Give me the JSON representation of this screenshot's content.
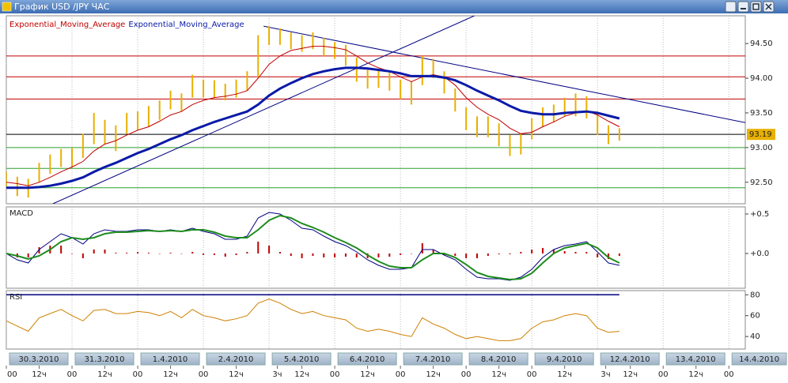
{
  "window": {
    "title": "График USD /JPY  ЧАС"
  },
  "chart_data": [
    {
      "type": "ohlc",
      "x": [
        0,
        4,
        8,
        12,
        16,
        20,
        24,
        28,
        32,
        36,
        40,
        44,
        48,
        52,
        56,
        60,
        64,
        68,
        72,
        76,
        80,
        84,
        88,
        92,
        96,
        100,
        104,
        108,
        112,
        116,
        120,
        124,
        128,
        132,
        136,
        140,
        144,
        148,
        152,
        156,
        160,
        164,
        168,
        172,
        176,
        180,
        184,
        188,
        192,
        196,
        200,
        204,
        208,
        212,
        216,
        220,
        224
      ],
      "xlim": [
        0,
        270
      ],
      "xticks": [
        {
          "value": 0,
          "label": "30.3.2010"
        },
        {
          "value": 24,
          "label": "31.3.2010"
        },
        {
          "value": 48,
          "label": "1.4.2010"
        },
        {
          "value": 72,
          "label": "2.4.2010"
        },
        {
          "value": 96,
          "label": "5.4.2010"
        },
        {
          "value": 120,
          "label": "6.4.2010"
        },
        {
          "value": 144,
          "label": "7.4.2010"
        },
        {
          "value": 168,
          "label": "8.4.2010"
        },
        {
          "value": 192,
          "label": "9.4.2010"
        },
        {
          "value": 216,
          "label": "12.4.2010"
        },
        {
          "value": 240,
          "label": "13.4.2010"
        },
        {
          "value": 264,
          "label": "14.4.2010"
        }
      ],
      "hour_ticks": [
        {
          "value": 0,
          "label": "00"
        },
        {
          "value": 12,
          "label": "12ч"
        },
        {
          "value": 24,
          "label": "00"
        },
        {
          "value": 36,
          "label": "12ч"
        },
        {
          "value": 48,
          "label": "00"
        },
        {
          "value": 60,
          "label": "12ч"
        },
        {
          "value": 72,
          "label": "00"
        },
        {
          "value": 84,
          "label": "12ч"
        },
        {
          "value": 99,
          "label": "3ч"
        },
        {
          "value": 108,
          "label": "12ч"
        },
        {
          "value": 120,
          "label": "00"
        },
        {
          "value": 132,
          "label": "12ч"
        },
        {
          "value": 144,
          "label": "00"
        },
        {
          "value": 156,
          "label": "12ч"
        },
        {
          "value": 168,
          "label": "00"
        },
        {
          "value": 180,
          "label": "12ч"
        },
        {
          "value": 192,
          "label": "00"
        },
        {
          "value": 204,
          "label": "12ч"
        },
        {
          "value": 219,
          "label": "3ч"
        },
        {
          "value": 228,
          "label": "12ч"
        },
        {
          "value": 240,
          "label": "00"
        },
        {
          "value": 252,
          "label": "12ч"
        },
        {
          "value": 264,
          "label": "00"
        }
      ],
      "price": {
        "color": "#e8b000",
        "high": [
          92.65,
          92.58,
          92.55,
          92.78,
          92.9,
          92.98,
          93.0,
          93.2,
          93.5,
          93.4,
          93.32,
          93.5,
          93.52,
          93.6,
          93.68,
          93.82,
          93.78,
          94.05,
          93.98,
          93.97,
          93.92,
          93.98,
          94.1,
          94.62,
          94.75,
          94.72,
          94.66,
          94.62,
          94.66,
          94.58,
          94.52,
          94.48,
          94.3,
          94.12,
          94.12,
          94.08,
          93.98,
          93.95,
          94.32,
          94.28,
          94.1,
          93.85,
          93.58,
          93.45,
          93.45,
          93.35,
          93.18,
          93.2,
          93.42,
          93.58,
          93.62,
          93.72,
          93.78,
          93.74,
          93.52,
          93.32,
          93.28
        ],
        "low": [
          92.42,
          92.3,
          92.28,
          92.5,
          92.62,
          92.72,
          92.72,
          92.85,
          93.05,
          93.05,
          92.95,
          93.2,
          93.25,
          93.3,
          93.4,
          93.55,
          93.52,
          93.72,
          93.72,
          93.72,
          93.68,
          93.72,
          93.82,
          94.0,
          94.48,
          94.48,
          94.42,
          94.38,
          94.42,
          94.32,
          94.28,
          94.18,
          93.95,
          93.85,
          93.86,
          93.82,
          93.7,
          93.62,
          93.9,
          94.0,
          93.78,
          93.52,
          93.25,
          93.15,
          93.15,
          93.02,
          92.88,
          92.9,
          93.12,
          93.3,
          93.36,
          93.45,
          93.45,
          93.42,
          93.18,
          93.05,
          93.1
        ]
      },
      "series": [
        {
          "name": "Exponential_Moving_Average",
          "color": "#c00000",
          "width": 1,
          "values": [
            92.5,
            92.48,
            92.45,
            92.5,
            92.57,
            92.65,
            92.72,
            92.8,
            92.95,
            93.05,
            93.1,
            93.18,
            93.25,
            93.3,
            93.38,
            93.47,
            93.52,
            93.62,
            93.68,
            93.72,
            93.74,
            93.77,
            93.82,
            94.0,
            94.2,
            94.32,
            94.4,
            94.43,
            94.46,
            94.46,
            94.44,
            94.41,
            94.32,
            94.22,
            94.15,
            94.1,
            94.02,
            93.95,
            94.02,
            94.05,
            94.02,
            93.9,
            93.72,
            93.58,
            93.48,
            93.4,
            93.28,
            93.2,
            93.22,
            93.3,
            93.37,
            93.45,
            93.5,
            93.53,
            93.47,
            93.38,
            93.3
          ]
        },
        {
          "name": "Exponential_Moving_Average",
          "color": "#0a1aa8",
          "width": 3,
          "values": [
            92.42,
            92.42,
            92.42,
            92.43,
            92.45,
            92.48,
            92.52,
            92.57,
            92.65,
            92.72,
            92.78,
            92.85,
            92.92,
            92.98,
            93.05,
            93.12,
            93.18,
            93.25,
            93.31,
            93.37,
            93.42,
            93.47,
            93.52,
            93.62,
            93.75,
            93.85,
            93.93,
            94.0,
            94.06,
            94.1,
            94.13,
            94.15,
            94.15,
            94.14,
            94.12,
            94.1,
            94.07,
            94.03,
            94.03,
            94.03,
            94.01,
            93.97,
            93.9,
            93.82,
            93.75,
            93.68,
            93.6,
            93.53,
            93.5,
            93.48,
            93.48,
            93.5,
            93.51,
            93.52,
            93.5,
            93.46,
            93.42
          ]
        }
      ],
      "ylim": [
        92.19,
        94.9
      ],
      "yticks": [
        {
          "value": 94.5,
          "label": "94.50"
        },
        {
          "value": 94.0,
          "label": "94.00"
        },
        {
          "value": 93.5,
          "label": "93.50"
        },
        {
          "value": 93.0,
          "label": "93.00"
        },
        {
          "value": 92.5,
          "label": "92.50"
        }
      ],
      "levels": [
        {
          "value": 94.32,
          "color": "#c00000"
        },
        {
          "value": 94.02,
          "color": "#c00000"
        },
        {
          "value": 93.7,
          "color": "#c00000"
        },
        {
          "value": 93.0,
          "color": "#2ca02c"
        },
        {
          "value": 92.7,
          "color": "#2ca02c"
        },
        {
          "value": 92.42,
          "color": "#2ca02c"
        }
      ],
      "last_price": {
        "value": 93.19,
        "label": "93.19",
        "color": "#000000"
      },
      "trendlines": [
        {
          "x": [
            17,
            171
          ],
          "y": [
            92.19,
            94.9
          ],
          "color": "#000080"
        },
        {
          "x": [
            94,
            270
          ],
          "y": [
            94.75,
            93.36
          ],
          "color": "#000080"
        }
      ]
    },
    {
      "type": "macd",
      "title": "MACD",
      "macd": {
        "color": "#000080",
        "values": [
          0.0,
          -0.08,
          -0.12,
          0.05,
          0.15,
          0.25,
          0.2,
          0.12,
          0.25,
          0.3,
          0.28,
          0.28,
          0.3,
          0.3,
          0.28,
          0.3,
          0.28,
          0.32,
          0.28,
          0.25,
          0.18,
          0.18,
          0.22,
          0.45,
          0.52,
          0.5,
          0.42,
          0.32,
          0.3,
          0.22,
          0.15,
          0.1,
          0.02,
          -0.08,
          -0.15,
          -0.2,
          -0.2,
          -0.18,
          0.05,
          0.05,
          -0.02,
          -0.08,
          -0.2,
          -0.3,
          -0.32,
          -0.32,
          -0.34,
          -0.3,
          -0.2,
          -0.05,
          0.05,
          0.1,
          0.12,
          0.15,
          0.02,
          -0.12,
          -0.15
        ]
      },
      "signal": {
        "color": "#1e8c1e",
        "values": [
          0.0,
          -0.03,
          -0.07,
          -0.03,
          0.05,
          0.15,
          0.2,
          0.18,
          0.2,
          0.25,
          0.27,
          0.27,
          0.28,
          0.29,
          0.28,
          0.29,
          0.28,
          0.3,
          0.3,
          0.27,
          0.22,
          0.2,
          0.2,
          0.3,
          0.42,
          0.48,
          0.45,
          0.38,
          0.33,
          0.27,
          0.2,
          0.14,
          0.07,
          -0.02,
          -0.1,
          -0.16,
          -0.18,
          -0.18,
          -0.08,
          0.0,
          0.0,
          -0.05,
          -0.14,
          -0.24,
          -0.29,
          -0.31,
          -0.33,
          -0.32,
          -0.25,
          -0.12,
          0.0,
          0.07,
          0.1,
          0.13,
          0.07,
          -0.05,
          -0.12
        ]
      },
      "histogram": {
        "color": "#c00000",
        "values": [
          0.0,
          -0.05,
          -0.05,
          0.08,
          0.1,
          0.1,
          0.0,
          -0.06,
          0.05,
          0.05,
          0.01,
          0.01,
          0.02,
          0.01,
          0.0,
          0.01,
          0.0,
          0.02,
          -0.02,
          -0.02,
          -0.04,
          -0.02,
          0.02,
          0.15,
          0.1,
          0.02,
          -0.03,
          -0.06,
          -0.03,
          -0.05,
          -0.05,
          -0.04,
          -0.05,
          -0.06,
          -0.05,
          -0.04,
          -0.02,
          0.0,
          0.13,
          0.05,
          -0.02,
          -0.03,
          -0.06,
          -0.06,
          -0.03,
          -0.01,
          -0.01,
          0.02,
          0.05,
          0.07,
          0.05,
          0.03,
          0.02,
          0.02,
          -0.05,
          -0.07,
          -0.03
        ]
      },
      "ylim": [
        -0.44,
        0.59
      ],
      "yticks": [
        {
          "value": 0.5,
          "label": "+0.5"
        },
        {
          "value": 0,
          "label": "+0.0"
        }
      ]
    },
    {
      "type": "rsi",
      "title": "RSI",
      "color": "#d08000",
      "values": [
        55,
        50,
        45,
        58,
        62,
        66,
        60,
        55,
        65,
        66,
        62,
        62,
        64,
        63,
        60,
        64,
        58,
        66,
        60,
        58,
        55,
        57,
        60,
        72,
        76,
        72,
        66,
        62,
        64,
        60,
        58,
        56,
        48,
        45,
        47,
        45,
        42,
        40,
        58,
        52,
        48,
        42,
        38,
        40,
        38,
        36,
        36,
        38,
        48,
        54,
        56,
        60,
        62,
        60,
        48,
        44,
        45
      ],
      "ylim": [
        28,
        84
      ],
      "yticks": [
        80,
        60,
        40
      ],
      "level": {
        "value": 80,
        "color": "#000080"
      }
    }
  ]
}
